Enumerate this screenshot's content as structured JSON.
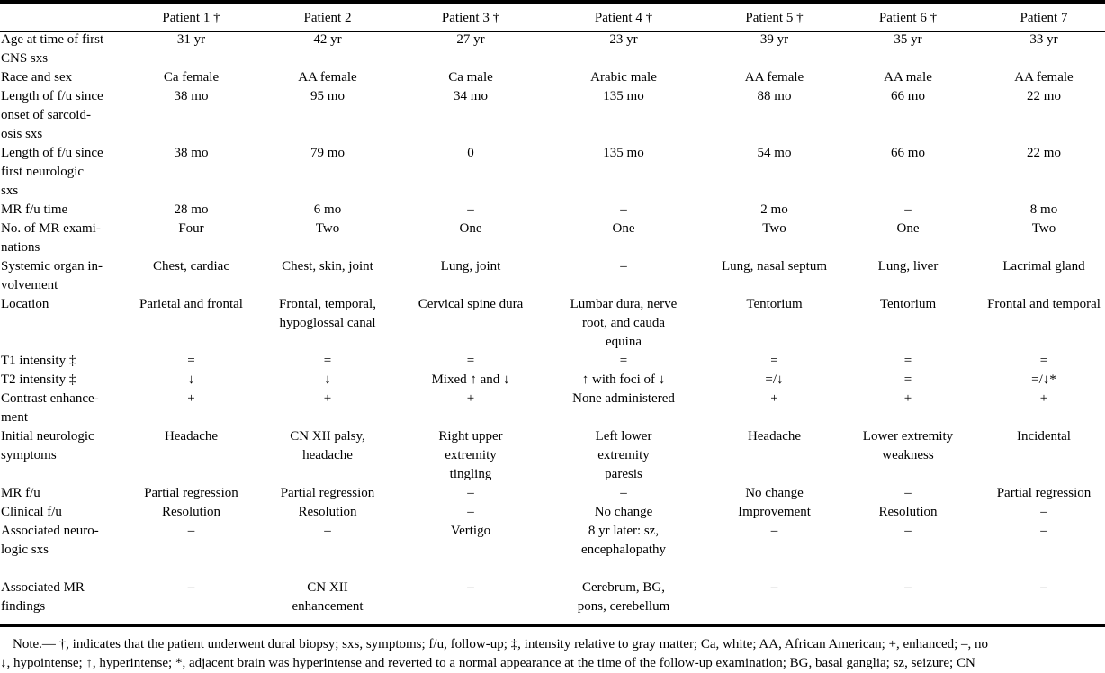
{
  "header": [
    "",
    "Patient 1 †",
    "Patient 2",
    "Patient 3 †",
    "Patient 4 †",
    "Patient 5 †",
    "Patient 6 †",
    "Patient 7"
  ],
  "rows": [
    {
      "label": [
        "Age at time of first",
        "CNS sxs"
      ],
      "cells": [
        "31 yr",
        "42 yr",
        "27 yr",
        "23 yr",
        "39 yr",
        "35 yr",
        "33 yr"
      ]
    },
    {
      "label": [
        "Race and sex"
      ],
      "cells": [
        "Ca female",
        "AA female",
        "Ca male",
        "Arabic male",
        "AA female",
        "AA male",
        "AA female"
      ]
    },
    {
      "label": [
        "Length of f/u since",
        "onset of sarcoid-",
        "osis sxs"
      ],
      "cells": [
        "38 mo",
        "95 mo",
        "34 mo",
        "135 mo",
        "88 mo",
        "66 mo",
        "22 mo"
      ]
    },
    {
      "label": [
        "Length of f/u since",
        "first neurologic",
        "sxs"
      ],
      "cells": [
        "38 mo",
        "79 mo",
        "0",
        "135 mo",
        "54 mo",
        "66 mo",
        "22 mo"
      ]
    },
    {
      "label": [
        "MR f/u time"
      ],
      "cells": [
        "28 mo",
        "6 mo",
        "–",
        "–",
        "2 mo",
        "–",
        "8 mo"
      ]
    },
    {
      "label": [
        "No. of MR exami-",
        "nations"
      ],
      "cells": [
        "Four",
        "Two",
        "One",
        "One",
        "Two",
        "One",
        "Two"
      ]
    },
    {
      "label": [
        "Systemic organ in-",
        "volvement"
      ],
      "cells": [
        "Chest, cardiac",
        "Chest, skin, joint",
        "Lung, joint",
        "–",
        "Lung, nasal septum",
        "Lung, liver",
        "Lacrimal gland"
      ]
    },
    {
      "label": [
        "Location"
      ],
      "cells": [
        [
          "Parietal and frontal"
        ],
        [
          "Frontal, temporal,",
          "hypoglossal canal"
        ],
        [
          "Cervical spine dura"
        ],
        [
          "Lumbar dura, nerve",
          "root, and cauda",
          "equina"
        ],
        [
          "Tentorium"
        ],
        [
          "Tentorium"
        ],
        [
          "Frontal and temporal"
        ]
      ]
    },
    {
      "label": [
        "T1 intensity ‡"
      ],
      "cells": [
        "=",
        "=",
        "=",
        "=",
        "=",
        "=",
        "="
      ]
    },
    {
      "label": [
        "T2 intensity ‡"
      ],
      "cells": [
        "↓",
        "↓",
        "Mixed ↑ and ↓",
        "↑ with foci of ↓",
        "=/↓",
        "=",
        "=/↓*"
      ]
    },
    {
      "label": [
        "Contrast enhance-",
        "ment"
      ],
      "cells": [
        "+",
        "+",
        "+",
        "None administered",
        "+",
        "+",
        "+"
      ]
    },
    {
      "label": [
        "Initial neurologic",
        "symptoms"
      ],
      "cells": [
        [
          "Headache"
        ],
        [
          "CN XII palsy,",
          "headache"
        ],
        [
          "Right upper",
          "extremity",
          "tingling"
        ],
        [
          "Left lower",
          "extremity",
          "paresis"
        ],
        [
          "Headache"
        ],
        [
          "Lower extremity",
          "weakness"
        ],
        [
          "Incidental"
        ]
      ]
    },
    {
      "label": [
        "MR f/u"
      ],
      "cells": [
        "Partial regression",
        "Partial regression",
        "–",
        "–",
        "No change",
        "–",
        "Partial regression"
      ]
    },
    {
      "label": [
        "Clinical f/u"
      ],
      "cells": [
        "Resolution",
        "Resolution",
        "–",
        "No change",
        "Improvement",
        "Resolution",
        "–"
      ]
    },
    {
      "label": [
        "Associated neuro-",
        "logic sxs"
      ],
      "cells": [
        [
          "–"
        ],
        [
          "–"
        ],
        [
          "Vertigo"
        ],
        [
          "8 yr later: sz,",
          "encephalopathy"
        ],
        [
          "–"
        ],
        [
          "–"
        ],
        [
          "–"
        ]
      ],
      "extra_gap": true
    },
    {
      "label": [
        "Associated MR",
        "findings"
      ],
      "cells": [
        [
          "–"
        ],
        [
          "CN XII",
          "enhancement"
        ],
        [
          "–"
        ],
        [
          "Cerebrum, BG,",
          "pons, cerebellum"
        ],
        [
          "–"
        ],
        [
          "–"
        ],
        [
          "–"
        ]
      ]
    }
  ],
  "notes": [
    "Note.— †, indicates that the patient underwent dural biopsy; sxs, symptoms; f/u, follow-up; ‡, intensity relative to gray matter; Ca, white; AA, African American; +, enhanced; –, no",
    "↓, hypointense; ↑, hyperintense; *, adjacent brain was hyperintense and reverted to a normal appearance at the time of the follow-up examination; BG, basal ganglia; sz, seizure; CN"
  ]
}
